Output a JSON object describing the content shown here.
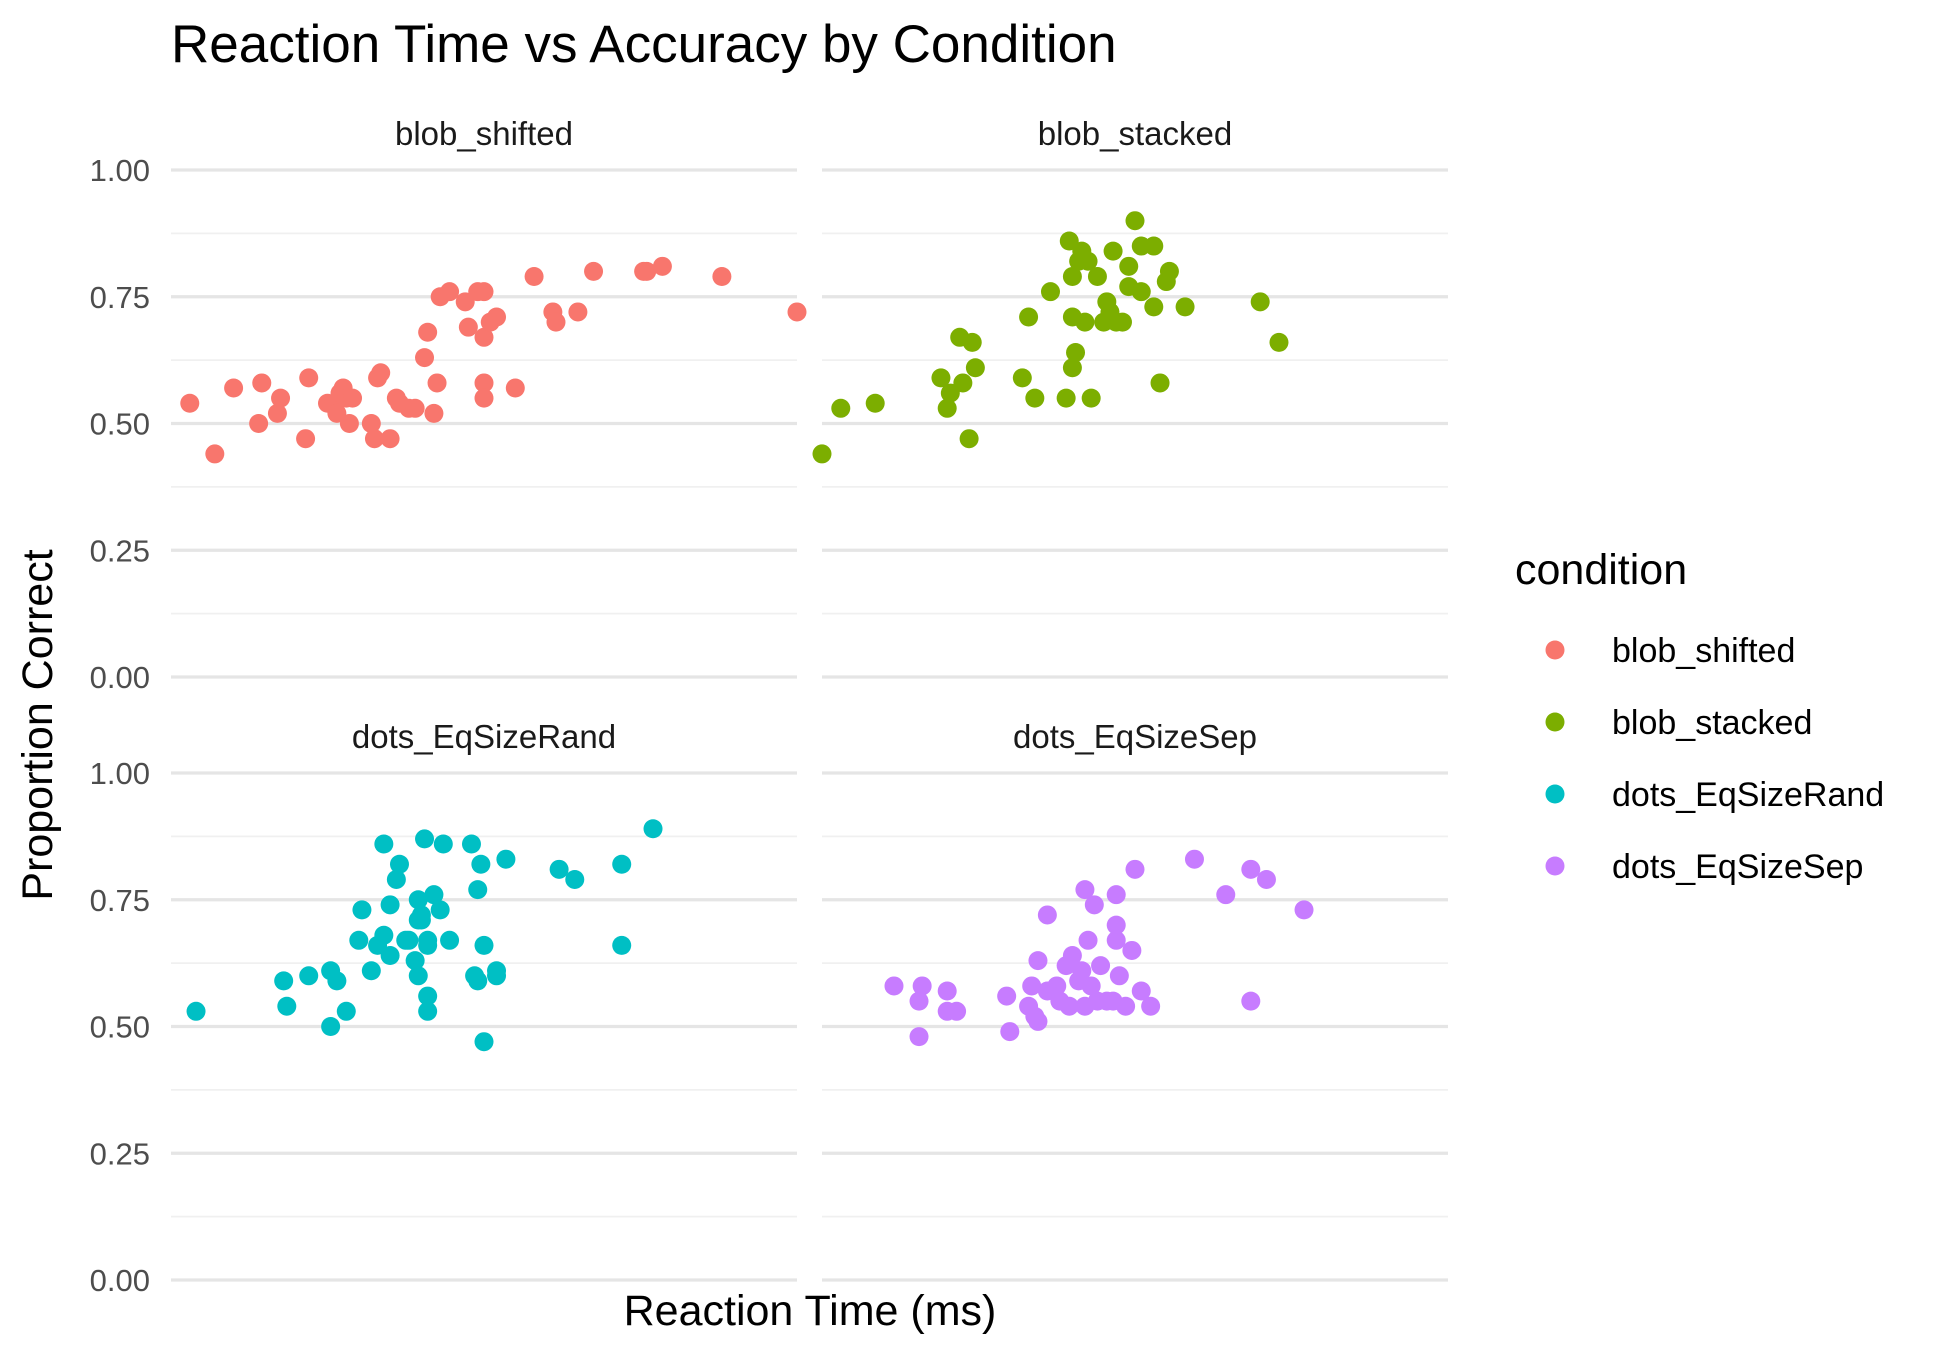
{
  "chart_data": {
    "type": "scatter",
    "title": "Reaction Time vs Accuracy by Condition",
    "xlabel": "Reaction Time (ms)",
    "ylabel": "Proportion Correct",
    "ylim": [
      0,
      1
    ],
    "yticks": [
      "0.00",
      "0.25",
      "0.50",
      "0.75",
      "1.00"
    ],
    "x_ticks_shown": false,
    "grid": true,
    "legend": {
      "title": "condition",
      "position": "right"
    },
    "colors": {
      "blob_shifted": "#F8766D",
      "blob_stacked": "#7CAE00",
      "dots_EqSizeRand": "#00BFC4",
      "dots_EqSizeSep": "#C77CFF"
    },
    "facets": [
      "blob_shifted",
      "blob_stacked",
      "dots_EqSizeRand",
      "dots_EqSizeSep"
    ],
    "series": [
      {
        "name": "blob_shifted",
        "points": [
          [
            0.03,
            0.54
          ],
          [
            0.07,
            0.44
          ],
          [
            0.1,
            0.57
          ],
          [
            0.14,
            0.5
          ],
          [
            0.145,
            0.58
          ],
          [
            0.17,
            0.52
          ],
          [
            0.175,
            0.55
          ],
          [
            0.215,
            0.47
          ],
          [
            0.22,
            0.59
          ],
          [
            0.25,
            0.54
          ],
          [
            0.26,
            0.54
          ],
          [
            0.265,
            0.52
          ],
          [
            0.27,
            0.56
          ],
          [
            0.275,
            0.57
          ],
          [
            0.28,
            0.55
          ],
          [
            0.285,
            0.5
          ],
          [
            0.29,
            0.55
          ],
          [
            0.32,
            0.5
          ],
          [
            0.325,
            0.47
          ],
          [
            0.33,
            0.59
          ],
          [
            0.335,
            0.6
          ],
          [
            0.35,
            0.47
          ],
          [
            0.36,
            0.55
          ],
          [
            0.365,
            0.54
          ],
          [
            0.38,
            0.53
          ],
          [
            0.39,
            0.53
          ],
          [
            0.405,
            0.63
          ],
          [
            0.41,
            0.68
          ],
          [
            0.42,
            0.52
          ],
          [
            0.425,
            0.58
          ],
          [
            0.43,
            0.75
          ],
          [
            0.445,
            0.76
          ],
          [
            0.47,
            0.74
          ],
          [
            0.475,
            0.69
          ],
          [
            0.49,
            0.76
          ],
          [
            0.5,
            0.76
          ],
          [
            0.5,
            0.67
          ],
          [
            0.5,
            0.58
          ],
          [
            0.5,
            0.55
          ],
          [
            0.51,
            0.7
          ],
          [
            0.52,
            0.71
          ],
          [
            0.55,
            0.57
          ],
          [
            0.58,
            0.79
          ],
          [
            0.61,
            0.72
          ],
          [
            0.615,
            0.7
          ],
          [
            0.65,
            0.72
          ],
          [
            0.675,
            0.8
          ],
          [
            0.755,
            0.8
          ],
          [
            0.76,
            0.8
          ],
          [
            0.785,
            0.81
          ],
          [
            0.88,
            0.79
          ],
          [
            1.0,
            0.72
          ]
        ]
      },
      {
        "name": "blob_stacked",
        "points": [
          [
            0.0,
            0.44
          ],
          [
            0.03,
            0.53
          ],
          [
            0.085,
            0.54
          ],
          [
            0.19,
            0.59
          ],
          [
            0.2,
            0.53
          ],
          [
            0.205,
            0.56
          ],
          [
            0.22,
            0.67
          ],
          [
            0.225,
            0.58
          ],
          [
            0.235,
            0.47
          ],
          [
            0.24,
            0.66
          ],
          [
            0.245,
            0.61
          ],
          [
            0.32,
            0.59
          ],
          [
            0.33,
            0.71
          ],
          [
            0.34,
            0.55
          ],
          [
            0.365,
            0.76
          ],
          [
            0.39,
            0.55
          ],
          [
            0.395,
            0.86
          ],
          [
            0.4,
            0.71
          ],
          [
            0.4,
            0.61
          ],
          [
            0.4,
            0.79
          ],
          [
            0.405,
            0.64
          ],
          [
            0.41,
            0.82
          ],
          [
            0.415,
            0.84
          ],
          [
            0.42,
            0.7
          ],
          [
            0.425,
            0.82
          ],
          [
            0.43,
            0.55
          ],
          [
            0.44,
            0.79
          ],
          [
            0.45,
            0.7
          ],
          [
            0.455,
            0.74
          ],
          [
            0.46,
            0.72
          ],
          [
            0.465,
            0.84
          ],
          [
            0.47,
            0.7
          ],
          [
            0.48,
            0.7
          ],
          [
            0.49,
            0.77
          ],
          [
            0.49,
            0.81
          ],
          [
            0.5,
            0.9
          ],
          [
            0.51,
            0.76
          ],
          [
            0.51,
            0.85
          ],
          [
            0.53,
            0.73
          ],
          [
            0.53,
            0.85
          ],
          [
            0.54,
            0.58
          ],
          [
            0.55,
            0.78
          ],
          [
            0.555,
            0.8
          ],
          [
            0.58,
            0.73
          ],
          [
            0.7,
            0.74
          ],
          [
            0.73,
            0.66
          ]
        ]
      },
      {
        "name": "dots_EqSizeRand",
        "points": [
          [
            0.04,
            0.53
          ],
          [
            0.18,
            0.59
          ],
          [
            0.185,
            0.54
          ],
          [
            0.22,
            0.6
          ],
          [
            0.255,
            0.61
          ],
          [
            0.255,
            0.5
          ],
          [
            0.265,
            0.59
          ],
          [
            0.28,
            0.53
          ],
          [
            0.3,
            0.67
          ],
          [
            0.305,
            0.73
          ],
          [
            0.32,
            0.61
          ],
          [
            0.33,
            0.66
          ],
          [
            0.34,
            0.86
          ],
          [
            0.34,
            0.68
          ],
          [
            0.35,
            0.74
          ],
          [
            0.35,
            0.64
          ],
          [
            0.36,
            0.79
          ],
          [
            0.365,
            0.82
          ],
          [
            0.375,
            0.67
          ],
          [
            0.38,
            0.67
          ],
          [
            0.39,
            0.63
          ],
          [
            0.395,
            0.6
          ],
          [
            0.395,
            0.71
          ],
          [
            0.395,
            0.75
          ],
          [
            0.4,
            0.72
          ],
          [
            0.4,
            0.71
          ],
          [
            0.405,
            0.87
          ],
          [
            0.41,
            0.66
          ],
          [
            0.41,
            0.67
          ],
          [
            0.41,
            0.56
          ],
          [
            0.41,
            0.53
          ],
          [
            0.42,
            0.76
          ],
          [
            0.43,
            0.73
          ],
          [
            0.435,
            0.86
          ],
          [
            0.445,
            0.67
          ],
          [
            0.48,
            0.86
          ],
          [
            0.485,
            0.6
          ],
          [
            0.49,
            0.77
          ],
          [
            0.49,
            0.59
          ],
          [
            0.495,
            0.82
          ],
          [
            0.5,
            0.66
          ],
          [
            0.5,
            0.47
          ],
          [
            0.52,
            0.6
          ],
          [
            0.52,
            0.61
          ],
          [
            0.535,
            0.83
          ],
          [
            0.62,
            0.81
          ],
          [
            0.645,
            0.79
          ],
          [
            0.72,
            0.82
          ],
          [
            0.72,
            0.66
          ],
          [
            0.77,
            0.89
          ]
        ]
      },
      {
        "name": "dots_EqSizeSep",
        "points": [
          [
            0.115,
            0.58
          ],
          [
            0.155,
            0.55
          ],
          [
            0.155,
            0.48
          ],
          [
            0.16,
            0.58
          ],
          [
            0.2,
            0.57
          ],
          [
            0.2,
            0.53
          ],
          [
            0.215,
            0.53
          ],
          [
            0.295,
            0.56
          ],
          [
            0.3,
            0.49
          ],
          [
            0.33,
            0.54
          ],
          [
            0.335,
            0.58
          ],
          [
            0.34,
            0.52
          ],
          [
            0.345,
            0.51
          ],
          [
            0.345,
            0.63
          ],
          [
            0.36,
            0.57
          ],
          [
            0.36,
            0.72
          ],
          [
            0.375,
            0.58
          ],
          [
            0.38,
            0.55
          ],
          [
            0.39,
            0.62
          ],
          [
            0.395,
            0.54
          ],
          [
            0.4,
            0.64
          ],
          [
            0.41,
            0.59
          ],
          [
            0.415,
            0.61
          ],
          [
            0.42,
            0.54
          ],
          [
            0.42,
            0.77
          ],
          [
            0.425,
            0.67
          ],
          [
            0.43,
            0.58
          ],
          [
            0.435,
            0.74
          ],
          [
            0.44,
            0.55
          ],
          [
            0.445,
            0.62
          ],
          [
            0.455,
            0.55
          ],
          [
            0.465,
            0.55
          ],
          [
            0.47,
            0.67
          ],
          [
            0.47,
            0.76
          ],
          [
            0.47,
            0.7
          ],
          [
            0.475,
            0.6
          ],
          [
            0.485,
            0.54
          ],
          [
            0.495,
            0.65
          ],
          [
            0.5,
            0.81
          ],
          [
            0.51,
            0.57
          ],
          [
            0.525,
            0.54
          ],
          [
            0.595,
            0.83
          ],
          [
            0.645,
            0.76
          ],
          [
            0.685,
            0.55
          ],
          [
            0.685,
            0.81
          ],
          [
            0.71,
            0.79
          ],
          [
            0.77,
            0.73
          ]
        ]
      }
    ]
  }
}
